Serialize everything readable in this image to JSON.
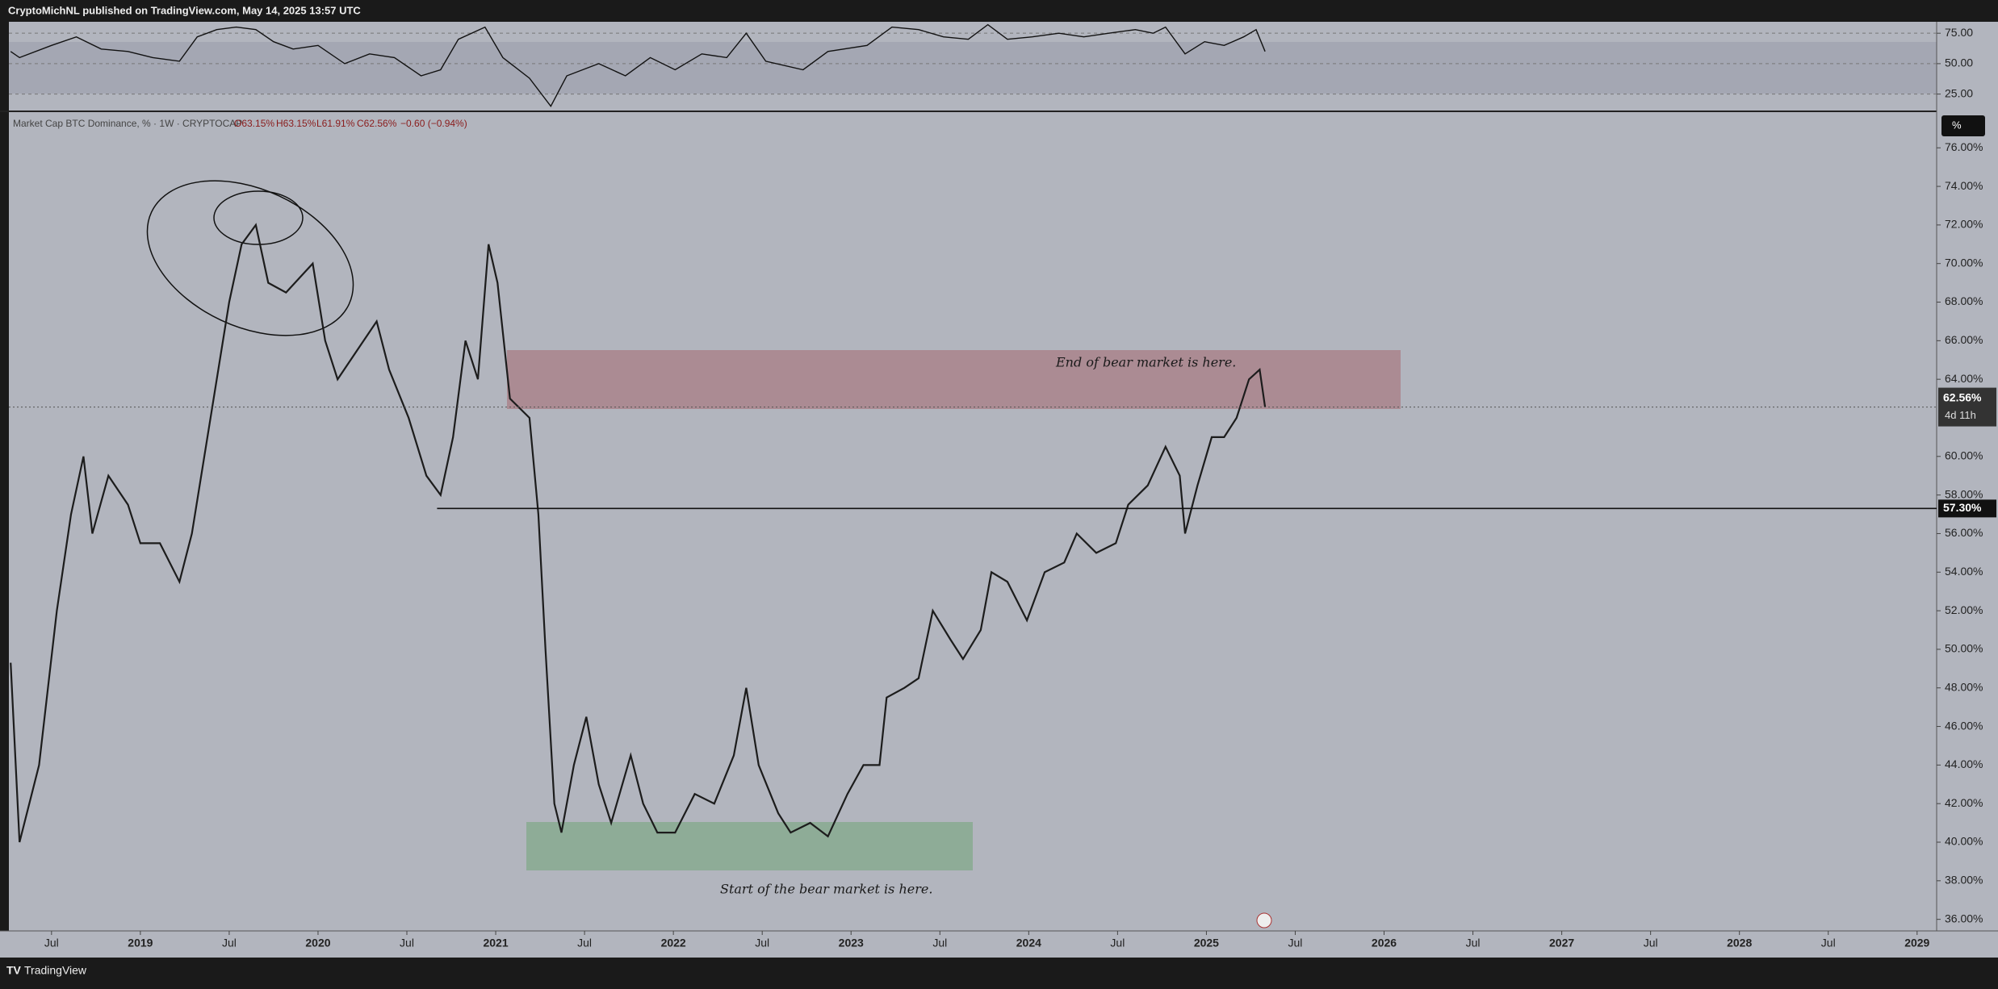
{
  "header": {
    "publisher": "CryptoMichNL published on TradingView.com, May 14, 2025 13:57 UTC"
  },
  "footer": {
    "brand": "TradingView"
  },
  "legend": {
    "symbol": "Market Cap BTC Dominance, % · 1W · CRYPTOCAP",
    "open": "O63.15%",
    "high": "H63.15%",
    "low": "L61.91%",
    "close": "C62.56%",
    "change": "−0.60 (−0.94%)"
  },
  "scale_button": "%",
  "chart_data": [
    {
      "type": "line",
      "pane": "rsi",
      "color": "#111111",
      "x": [
        2018.27,
        2018.32,
        2018.5,
        2018.64,
        2018.78,
        2018.93,
        2019.07,
        2019.22,
        2019.32,
        2019.43,
        2019.54,
        2019.65,
        2019.75,
        2019.86,
        2020.0,
        2020.15,
        2020.29,
        2020.43,
        2020.58,
        2020.69,
        2020.79,
        2020.94,
        2021.04,
        2021.19,
        2021.31,
        2021.4,
        2021.58,
        2021.73,
        2021.87,
        2022.01,
        2022.16,
        2022.3,
        2022.41,
        2022.52,
        2022.73,
        2022.87,
        2023.09,
        2023.23,
        2023.38,
        2023.52,
        2023.66,
        2023.77,
        2023.88,
        2024.02,
        2024.17,
        2024.31,
        2024.45,
        2024.6,
        2024.7,
        2024.77,
        2024.88,
        2024.99,
        2025.1,
        2025.21,
        2025.28,
        2025.33
      ],
      "values": [
        60,
        55,
        65,
        72,
        62,
        60,
        55,
        52,
        72,
        78,
        80,
        78,
        68,
        62,
        65,
        50,
        58,
        55,
        40,
        45,
        70,
        80,
        55,
        38,
        15,
        40,
        50,
        40,
        55,
        45,
        58,
        55,
        75,
        52,
        45,
        60,
        65,
        80,
        78,
        72,
        70,
        82,
        70,
        72,
        75,
        72,
        75,
        78,
        75,
        80,
        58,
        68,
        65,
        72,
        78,
        60
      ],
      "ylim": [
        11.5,
        84.4
      ],
      "yticks": [
        {
          "value": 25,
          "label": "25.00"
        },
        {
          "value": 50,
          "label": "50.00"
        },
        {
          "value": 75,
          "label": "75.00"
        }
      ]
    },
    {
      "type": "line",
      "pane": "main",
      "color": "#1c1c1c",
      "x": [
        2018.27,
        2018.32,
        2018.43,
        2018.53,
        2018.61,
        2018.68,
        2018.73,
        2018.82,
        2018.93,
        2019.0,
        2019.11,
        2019.22,
        2019.29,
        2019.36,
        2019.43,
        2019.5,
        2019.57,
        2019.65,
        2019.72,
        2019.82,
        2019.97,
        2020.04,
        2020.11,
        2020.22,
        2020.33,
        2020.4,
        2020.51,
        2020.61,
        2020.69,
        2020.76,
        2020.83,
        2020.9,
        2020.96,
        2021.01,
        2021.08,
        2021.19,
        2021.24,
        2021.28,
        2021.33,
        2021.37,
        2021.44,
        2021.51,
        2021.58,
        2021.65,
        2021.76,
        2021.83,
        2021.91,
        2022.01,
        2022.12,
        2022.23,
        2022.34,
        2022.41,
        2022.48,
        2022.59,
        2022.66,
        2022.77,
        2022.87,
        2022.98,
        2023.07,
        2023.16,
        2023.2,
        2023.3,
        2023.38,
        2023.46,
        2023.56,
        2023.63,
        2023.73,
        2023.79,
        2023.88,
        2023.99,
        2024.09,
        2024.2,
        2024.27,
        2024.38,
        2024.49,
        2024.56,
        2024.67,
        2024.77,
        2024.85,
        2024.88,
        2024.95,
        2025.03,
        2025.1,
        2025.17,
        2025.24,
        2025.3,
        2025.33
      ],
      "values": [
        49.3,
        40,
        44,
        52,
        57,
        60,
        56,
        59,
        57.5,
        55.5,
        55.5,
        53.5,
        56,
        60,
        64,
        68,
        71,
        72,
        69,
        68.5,
        70,
        66,
        64,
        65.5,
        67,
        64.5,
        62,
        59,
        58,
        61,
        66,
        64,
        71,
        69,
        63,
        62,
        57,
        50,
        42,
        40.5,
        44,
        46.5,
        43,
        41,
        44.5,
        42,
        40.5,
        40.5,
        42.5,
        42,
        44.5,
        48,
        44,
        41.5,
        40.5,
        41,
        40.3,
        42.5,
        44,
        44,
        47.5,
        48,
        48.5,
        52,
        50.5,
        49.5,
        51,
        54,
        53.5,
        51.5,
        54,
        54.5,
        56,
        55,
        55.5,
        57.5,
        58.5,
        60.5,
        59,
        56,
        58.5,
        61,
        61,
        62,
        64,
        64.5,
        62.56
      ],
      "current": {
        "value": 62.56,
        "label": "62.56%"
      },
      "countdown": "4d 11h",
      "level": {
        "value": 57.3,
        "label": "57.30%"
      },
      "annotations": [
        "End of bear market is here.",
        "Start of the bear market is here."
      ],
      "xlim": [
        2018.26,
        2029.11
      ],
      "xticks": [
        {
          "value": 2018.5,
          "label": "Jul"
        },
        2019,
        {
          "value": 2019.5,
          "label": "Jul"
        },
        2020,
        {
          "value": 2020.5,
          "label": "Jul"
        },
        2021,
        {
          "value": 2021.5,
          "label": "Jul"
        },
        2022,
        {
          "value": 2022.5,
          "label": "Jul"
        },
        2023,
        {
          "value": 2023.5,
          "label": "Jul"
        },
        2024,
        {
          "value": 2024.5,
          "label": "Jul"
        },
        2025,
        {
          "value": 2025.5,
          "label": "Jul"
        },
        2026,
        {
          "value": 2026.5,
          "label": "Jul"
        },
        2027,
        {
          "value": 2027.5,
          "label": "Jul"
        },
        2028,
        {
          "value": 2028.5,
          "label": "Jul"
        },
        2029
      ],
      "ylim": [
        35.4,
        77.85
      ],
      "yticks": [
        {
          "value": 36,
          "label": "36.00%"
        },
        {
          "value": 38,
          "label": "38.00%"
        },
        {
          "value": 40,
          "label": "40.00%"
        },
        {
          "value": 42,
          "label": "42.00%"
        },
        {
          "value": 44,
          "label": "44.00%"
        },
        {
          "value": 46,
          "label": "46.00%"
        },
        {
          "value": 48,
          "label": "48.00%"
        },
        {
          "value": 50,
          "label": "50.00%"
        },
        {
          "value": 52,
          "label": "52.00%"
        },
        {
          "value": 54,
          "label": "54.00%"
        },
        {
          "value": 56,
          "label": "56.00%"
        },
        {
          "value": 58,
          "label": "58.00%"
        },
        {
          "value": 60,
          "label": "60.00%"
        },
        {
          "value": 64,
          "label": "64.00%"
        },
        {
          "value": 66,
          "label": "66.00%"
        },
        {
          "value": 68,
          "label": "68.00%"
        },
        {
          "value": 70,
          "label": "70.00%"
        },
        {
          "value": 72,
          "label": "72.00%"
        },
        {
          "value": 74,
          "label": "74.00%"
        },
        {
          "value": 76,
          "label": "76.00%"
        }
      ]
    }
  ]
}
